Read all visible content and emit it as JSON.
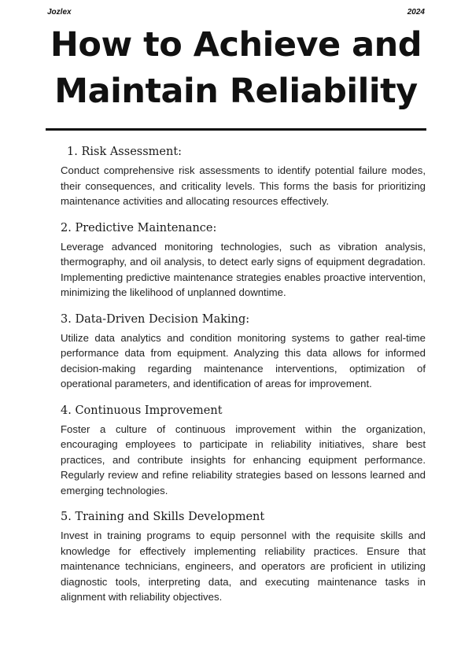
{
  "header": {
    "brand": "Jozlex",
    "year": "2024"
  },
  "title": "How to Achieve and Maintain Reliability",
  "sections": [
    {
      "heading": "1. Risk Assessment:",
      "body": "Conduct comprehensive risk assessments to identify potential failure modes, their consequences, and criticality levels. This forms the basis for prioritizing maintenance activities and allocating resources effectively."
    },
    {
      "heading": "2. Predictive Maintenance:",
      "body": "Leverage advanced monitoring technologies, such as vibration analysis, thermography, and oil analysis, to detect early signs of equipment degradation. Implementing predictive maintenance strategies enables proactive intervention, minimizing the likelihood of unplanned downtime."
    },
    {
      "heading": "3. Data-Driven Decision Making:",
      "body": "Utilize data analytics and condition monitoring systems to gather real-time performance data from equipment. Analyzing this data allows for informed decision-making regarding maintenance interventions, optimization of operational parameters, and identification of areas for improvement."
    },
    {
      "heading": "4. Continuous Improvement",
      "body": "Foster a culture of continuous improvement within the organization, encouraging employees to participate in reliability initiatives, share best practices, and contribute insights for enhancing equipment performance. Regularly review and refine reliability strategies based on lessons learned and emerging technologies."
    },
    {
      "heading": "5. Training and Skills Development",
      "body": "Invest in training programs to equip personnel with the requisite skills and knowledge for effectively implementing reliability practices. Ensure that maintenance technicians, engineers, and operators are proficient in utilizing diagnostic tools, interpreting data, and executing maintenance tasks in alignment with reliability objectives."
    }
  ]
}
